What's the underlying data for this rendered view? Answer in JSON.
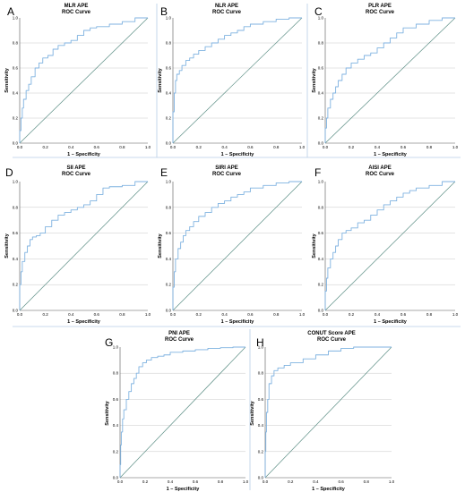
{
  "colors": {
    "roc": "#7fb2e0",
    "ref": "#5d8f86",
    "grid": "#c8c8c8",
    "axis": "#555555",
    "separator": "#b7cde6"
  },
  "chart_data": [
    {
      "panel": "A",
      "type": "line",
      "title": "MLR  APE",
      "subtitle": "ROC Curve",
      "xlabel": "1 – Specificity",
      "ylabel": "Sensitivity",
      "xlim": [
        0,
        1
      ],
      "ylim": [
        0,
        1
      ],
      "grid": true,
      "xticks": [
        "0.0",
        "0.2",
        "0.4",
        "0.6",
        "0.8",
        "1.0"
      ],
      "yticks": [
        "0.0",
        "0.2",
        "0.4",
        "0.6",
        "0.8",
        "1.0"
      ],
      "series": [
        {
          "x": [
            0,
            0.01,
            0.02,
            0.03,
            0.05,
            0.07,
            0.09,
            0.12,
            0.15,
            0.18,
            0.22,
            0.26,
            0.3,
            0.35,
            0.4,
            0.45,
            0.5,
            0.55,
            0.6,
            0.7,
            0.8,
            0.9,
            1.0
          ],
          "y": [
            0,
            0.1,
            0.2,
            0.28,
            0.35,
            0.42,
            0.47,
            0.53,
            0.6,
            0.64,
            0.68,
            0.7,
            0.75,
            0.78,
            0.8,
            0.82,
            0.86,
            0.9,
            0.92,
            0.93,
            0.95,
            0.97,
            1.0
          ]
        },
        {
          "x": [
            0,
            1
          ],
          "y": [
            0,
            1
          ]
        }
      ]
    },
    {
      "panel": "B",
      "type": "line",
      "title": "NLR  APE",
      "subtitle": "ROC Curve",
      "xlabel": "1 – Specificity",
      "ylabel": "Sensitivity",
      "xlim": [
        0,
        1
      ],
      "ylim": [
        0,
        1
      ],
      "grid": true,
      "xticks": [
        "0.0",
        "0.2",
        "0.4",
        "0.6",
        "0.8",
        "1.0"
      ],
      "yticks": [
        "0.0",
        "0.2",
        "0.4",
        "0.6",
        "0.8",
        "1.0"
      ],
      "series": [
        {
          "x": [
            0,
            0.01,
            0.02,
            0.03,
            0.05,
            0.07,
            0.1,
            0.13,
            0.16,
            0.2,
            0.25,
            0.3,
            0.35,
            0.4,
            0.45,
            0.5,
            0.55,
            0.6,
            0.7,
            0.8,
            0.9,
            1.0
          ],
          "y": [
            0,
            0.25,
            0.4,
            0.5,
            0.55,
            0.58,
            0.62,
            0.66,
            0.68,
            0.71,
            0.74,
            0.77,
            0.8,
            0.83,
            0.86,
            0.88,
            0.9,
            0.93,
            0.95,
            0.97,
            0.99,
            1.0
          ]
        },
        {
          "x": [
            0,
            1
          ],
          "y": [
            0,
            1
          ]
        }
      ]
    },
    {
      "panel": "C",
      "type": "line",
      "title": "PLR  APE",
      "subtitle": "ROC Curve",
      "xlabel": "1 – Specificity",
      "ylabel": "Sensitivity",
      "xlim": [
        0,
        1
      ],
      "ylim": [
        0,
        1
      ],
      "grid": true,
      "xticks": [
        "0.0",
        "0.2",
        "0.4",
        "0.6",
        "0.8",
        "1.0"
      ],
      "yticks": [
        "0.0",
        "0.2",
        "0.4",
        "0.6",
        "0.8",
        "1.0"
      ],
      "series": [
        {
          "x": [
            0,
            0.01,
            0.02,
            0.04,
            0.06,
            0.08,
            0.1,
            0.13,
            0.16,
            0.2,
            0.25,
            0.3,
            0.35,
            0.4,
            0.45,
            0.5,
            0.55,
            0.6,
            0.7,
            0.8,
            0.9,
            1.0
          ],
          "y": [
            0,
            0.12,
            0.2,
            0.28,
            0.35,
            0.4,
            0.45,
            0.5,
            0.55,
            0.6,
            0.64,
            0.67,
            0.7,
            0.72,
            0.76,
            0.8,
            0.84,
            0.88,
            0.92,
            0.95,
            0.98,
            1.0
          ]
        },
        {
          "x": [
            0,
            1
          ],
          "y": [
            0,
            1
          ]
        }
      ]
    },
    {
      "panel": "D",
      "type": "line",
      "title": "SII  APE",
      "subtitle": "ROC Curve",
      "xlabel": "1 – Specificity",
      "ylabel": "Sensitivity",
      "xlim": [
        0,
        1
      ],
      "ylim": [
        0,
        1
      ],
      "grid": true,
      "xticks": [
        "0.0",
        "0.2",
        "0.4",
        "0.6",
        "0.8",
        "1.0"
      ],
      "yticks": [
        "0.0",
        "0.2",
        "0.4",
        "0.6",
        "0.8",
        "1.0"
      ],
      "series": [
        {
          "x": [
            0,
            0.01,
            0.02,
            0.04,
            0.06,
            0.08,
            0.1,
            0.13,
            0.16,
            0.2,
            0.25,
            0.3,
            0.35,
            0.4,
            0.45,
            0.5,
            0.55,
            0.6,
            0.65,
            0.7,
            0.8,
            0.9,
            1.0
          ],
          "y": [
            0,
            0.2,
            0.3,
            0.38,
            0.45,
            0.5,
            0.55,
            0.57,
            0.58,
            0.6,
            0.65,
            0.7,
            0.74,
            0.76,
            0.78,
            0.8,
            0.82,
            0.85,
            0.9,
            0.95,
            0.96,
            0.97,
            1.0
          ]
        },
        {
          "x": [
            0,
            1
          ],
          "y": [
            0,
            1
          ]
        }
      ]
    },
    {
      "panel": "E",
      "type": "line",
      "title": "SIRI  APE",
      "subtitle": "ROC Curve",
      "xlabel": "1 – Specificity",
      "ylabel": "Sensitivity",
      "xlim": [
        0,
        1
      ],
      "ylim": [
        0,
        1
      ],
      "grid": true,
      "xticks": [
        "0.0",
        "0.2",
        "0.4",
        "0.6",
        "0.8",
        "1.0"
      ],
      "yticks": [
        "0.0",
        "0.2",
        "0.4",
        "0.6",
        "0.8",
        "1.0"
      ],
      "series": [
        {
          "x": [
            0,
            0.01,
            0.02,
            0.04,
            0.06,
            0.08,
            0.1,
            0.13,
            0.16,
            0.2,
            0.25,
            0.3,
            0.35,
            0.4,
            0.45,
            0.5,
            0.55,
            0.6,
            0.7,
            0.8,
            0.9,
            1.0
          ],
          "y": [
            0,
            0.18,
            0.3,
            0.4,
            0.48,
            0.53,
            0.58,
            0.62,
            0.65,
            0.69,
            0.73,
            0.76,
            0.8,
            0.83,
            0.85,
            0.88,
            0.9,
            0.92,
            0.95,
            0.97,
            0.99,
            1.0
          ]
        },
        {
          "x": [
            0,
            1
          ],
          "y": [
            0,
            1
          ]
        }
      ]
    },
    {
      "panel": "F",
      "type": "line",
      "title": "AISI  APE",
      "subtitle": "ROC Curve",
      "xlabel": "1 – Specificity",
      "ylabel": "Sensitivity",
      "xlim": [
        0,
        1
      ],
      "ylim": [
        0,
        1
      ],
      "grid": true,
      "xticks": [
        "0.0",
        "0.2",
        "0.4",
        "0.6",
        "0.8",
        "1.0"
      ],
      "yticks": [
        "0.0",
        "0.2",
        "0.4",
        "0.6",
        "0.8",
        "1.0"
      ],
      "series": [
        {
          "x": [
            0,
            0.01,
            0.02,
            0.04,
            0.06,
            0.08,
            0.1,
            0.13,
            0.16,
            0.2,
            0.25,
            0.3,
            0.35,
            0.4,
            0.45,
            0.5,
            0.55,
            0.6,
            0.65,
            0.7,
            0.8,
            0.9,
            1.0
          ],
          "y": [
            0,
            0.15,
            0.25,
            0.33,
            0.4,
            0.45,
            0.5,
            0.55,
            0.6,
            0.62,
            0.64,
            0.68,
            0.7,
            0.74,
            0.78,
            0.82,
            0.85,
            0.88,
            0.91,
            0.93,
            0.95,
            0.97,
            1.0
          ]
        },
        {
          "x": [
            0,
            1
          ],
          "y": [
            0,
            1
          ]
        }
      ]
    },
    {
      "panel": "G",
      "type": "line",
      "title": "PNI  APE",
      "subtitle": "ROC Curve",
      "xlabel": "1 – Specificity",
      "ylabel": "Sensitivity",
      "xlim": [
        0,
        1
      ],
      "ylim": [
        0,
        1
      ],
      "grid": true,
      "xticks": [
        "0.0",
        "0.2",
        "0.4",
        "0.6",
        "0.8",
        "1.0"
      ],
      "yticks": [
        "0.0",
        "0.2",
        "0.4",
        "0.6",
        "0.8",
        "1.0"
      ],
      "series": [
        {
          "x": [
            0,
            0.005,
            0.01,
            0.02,
            0.03,
            0.05,
            0.07,
            0.09,
            0.11,
            0.13,
            0.15,
            0.18,
            0.21,
            0.25,
            0.3,
            0.35,
            0.4,
            0.5,
            0.6,
            0.7,
            0.8,
            0.9,
            1.0
          ],
          "y": [
            0,
            0.1,
            0.25,
            0.35,
            0.45,
            0.52,
            0.6,
            0.66,
            0.72,
            0.76,
            0.8,
            0.85,
            0.88,
            0.9,
            0.92,
            0.93,
            0.94,
            0.96,
            0.97,
            0.98,
            0.99,
            0.995,
            1.0
          ]
        },
        {
          "x": [
            0,
            1
          ],
          "y": [
            0,
            1
          ]
        }
      ]
    },
    {
      "panel": "H",
      "type": "line",
      "title": "CONUT Score  APE",
      "subtitle": "ROC Curve",
      "xlabel": "1 – Specificity",
      "ylabel": "Sensitivity",
      "xlim": [
        0,
        1
      ],
      "ylim": [
        0,
        1
      ],
      "grid": true,
      "xticks": [
        "0.0",
        "0.2",
        "0.4",
        "0.6",
        "0.8",
        "1.0"
      ],
      "yticks": [
        "0.0",
        "0.2",
        "0.4",
        "0.6",
        "0.8",
        "1.0"
      ],
      "series": [
        {
          "x": [
            0,
            0.005,
            0.01,
            0.02,
            0.03,
            0.05,
            0.07,
            0.1,
            0.15,
            0.2,
            0.3,
            0.4,
            0.5,
            0.6,
            0.7,
            0.8,
            0.9,
            1.0
          ],
          "y": [
            0,
            0.2,
            0.35,
            0.5,
            0.6,
            0.72,
            0.78,
            0.82,
            0.84,
            0.86,
            0.88,
            0.91,
            0.94,
            0.97,
            0.99,
            1.0,
            1.0,
            1.0
          ]
        },
        {
          "x": [
            0,
            1
          ],
          "y": [
            0,
            1
          ]
        }
      ]
    }
  ]
}
